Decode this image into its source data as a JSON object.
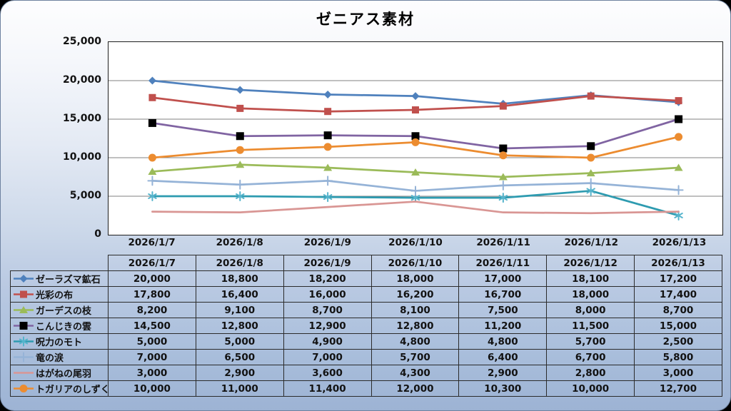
{
  "title": "ゼニアス素材",
  "chart_data": {
    "type": "line",
    "title": "ゼニアス素材",
    "categories": [
      "2026/1/7",
      "2026/1/8",
      "2026/1/9",
      "2026/1/10",
      "2026/1/11",
      "2026/1/12",
      "2026/1/13"
    ],
    "series": [
      {
        "name": "ゼーラズマ鉱石",
        "color": "#4F81BD",
        "marker": "diamond",
        "marker_color": "#4F81BD",
        "values": [
          20000,
          18800,
          18200,
          18000,
          17000,
          18100,
          17200
        ]
      },
      {
        "name": "光彩の布",
        "color": "#C0504D",
        "marker": "square",
        "marker_color": "#C0504D",
        "values": [
          17800,
          16400,
          16000,
          16200,
          16700,
          18000,
          17400
        ]
      },
      {
        "name": "ガーデスの枝",
        "color": "#9BBB59",
        "marker": "triangle",
        "marker_color": "#9BBB59",
        "values": [
          8200,
          9100,
          8700,
          8100,
          7500,
          8000,
          8700
        ]
      },
      {
        "name": "こんじきの雲",
        "color": "#8064A2",
        "marker": "bigsquare",
        "marker_color": "#000000",
        "values": [
          14500,
          12800,
          12900,
          12800,
          11200,
          11500,
          15000
        ]
      },
      {
        "name": "呪力のモト",
        "color": "#2E9BB0",
        "marker": "asterisk",
        "marker_color": "#55B4CC",
        "values": [
          5000,
          5000,
          4900,
          4800,
          4800,
          5700,
          2500
        ]
      },
      {
        "name": "竜の涙",
        "color": "#95B3D7",
        "marker": "plus",
        "marker_color": "#95B3D7",
        "values": [
          7000,
          6500,
          7000,
          5700,
          6400,
          6700,
          5800
        ]
      },
      {
        "name": "はがねの尾羽",
        "color": "#D99694",
        "marker": "none",
        "marker_color": "#D99694",
        "values": [
          3000,
          2900,
          3600,
          4300,
          2900,
          2800,
          3000
        ]
      },
      {
        "name": "トガリアのしずく",
        "color": "#EC8C30",
        "marker": "circle",
        "marker_color": "#EC8C30",
        "values": [
          10000,
          11000,
          11400,
          12000,
          10300,
          10000,
          12700
        ]
      }
    ],
    "ylim": [
      0,
      25000
    ],
    "ytick_step": 5000,
    "yticks": [
      "0",
      "5,000",
      "10,000",
      "15,000",
      "20,000",
      "25,000"
    ],
    "grid": true,
    "gridline_color": "#808080",
    "legend_position": "data-table-left",
    "data_table_shown": true
  }
}
